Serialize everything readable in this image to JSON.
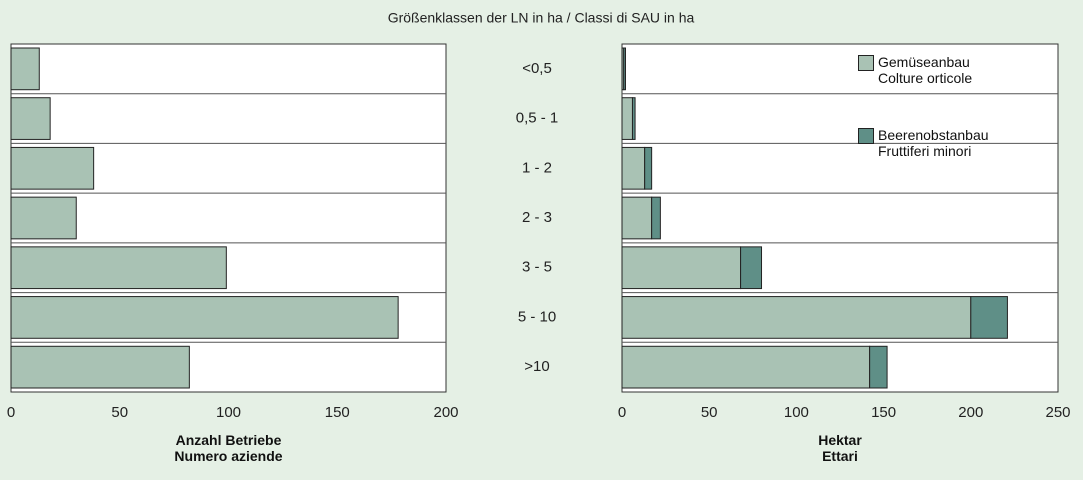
{
  "title": "Größenklassen der LN in ha / Classi di SAU in ha",
  "chart_data": [
    {
      "type": "bar",
      "categories": [
        "<0,5",
        "0,5 - 1",
        "1 - 2",
        "2 - 3",
        "3 - 5",
        "5 - 10",
        ">10"
      ],
      "values": [
        13,
        18,
        38,
        30,
        99,
        178,
        82
      ],
      "color": "#a9c2b4",
      "xlabel": "Anzahl Betriebe\nNumero aziende",
      "xlim": [
        0,
        200
      ],
      "xticks": [
        0,
        50,
        100,
        150,
        200
      ]
    },
    {
      "type": "bar",
      "stacked": true,
      "series": [
        {
          "name": "Gemüseanbau\nColture orticole",
          "color": "#a9c2b4",
          "values": [
            1,
            6,
            13,
            17,
            68,
            200,
            142
          ]
        },
        {
          "name": "Beerenobstanbau\nFruttiferi minori",
          "color": "#5f8f87",
          "values": [
            1,
            1.5,
            4,
            5,
            12,
            21,
            10
          ]
        }
      ],
      "legend": "upper right",
      "xlabel": "Hektar\nEttari",
      "xlim": [
        0,
        250
      ],
      "xticks": [
        0,
        50,
        100,
        150,
        200,
        250
      ]
    }
  ]
}
